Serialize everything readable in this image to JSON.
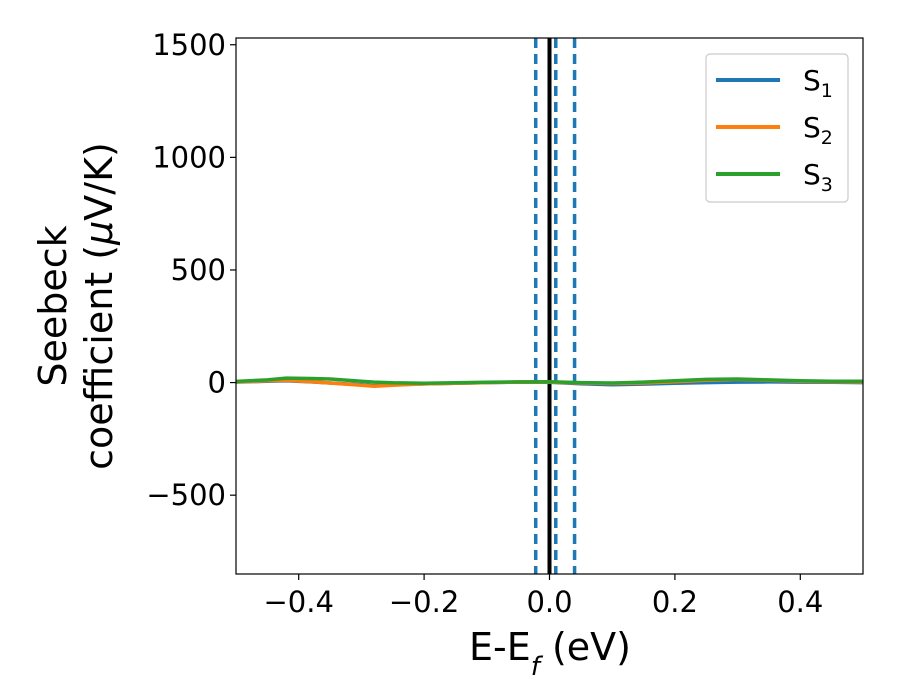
{
  "chart_data": {
    "type": "line",
    "xlabel": {
      "main": "E-E",
      "sub": "f",
      "unit": " (eV)"
    },
    "ylabel": {
      "line1": "Seebeck",
      "line2_prefix": "coefficient  (",
      "mu": "μ",
      "line2_suffix": "V/K)"
    },
    "xlim": [
      -0.5,
      0.5
    ],
    "ylim": [
      -850,
      1530
    ],
    "xticks": [
      {
        "value": -0.4,
        "label": "−0.4"
      },
      {
        "value": -0.2,
        "label": "−0.2"
      },
      {
        "value": 0.0,
        "label": "0.0"
      },
      {
        "value": 0.2,
        "label": "0.2"
      },
      {
        "value": 0.4,
        "label": "0.4"
      }
    ],
    "yticks": [
      {
        "value": -500,
        "label": "−500"
      },
      {
        "value": 0,
        "label": "0"
      },
      {
        "value": 500,
        "label": "500"
      },
      {
        "value": 1000,
        "label": "1000"
      },
      {
        "value": 1500,
        "label": "1500"
      }
    ],
    "series": [
      {
        "name": "S",
        "sub": "1",
        "color": "#1f77b4",
        "x": [
          -0.5,
          -0.45,
          -0.42,
          -0.38,
          -0.35,
          -0.3,
          -0.28,
          -0.25,
          -0.2,
          -0.15,
          -0.1,
          -0.05,
          0.0,
          0.05,
          0.1,
          0.15,
          0.2,
          0.25,
          0.3,
          0.35,
          0.4,
          0.45,
          0.5
        ],
        "y": [
          2,
          6,
          8,
          3,
          -2,
          -10,
          -14,
          -10,
          -6,
          -3,
          0,
          2,
          1,
          -5,
          -10,
          -7,
          -3,
          0,
          2,
          3,
          2,
          1,
          0
        ]
      },
      {
        "name": "S",
        "sub": "2",
        "color": "#ff7f0e",
        "x": [
          -0.5,
          -0.45,
          -0.42,
          -0.38,
          -0.35,
          -0.3,
          -0.28,
          -0.25,
          -0.2,
          -0.15,
          -0.1,
          -0.05,
          0.0,
          0.05,
          0.1,
          0.15,
          0.2,
          0.25,
          0.3,
          0.35,
          0.4,
          0.45,
          0.5
        ],
        "y": [
          3,
          8,
          10,
          4,
          -2,
          -12,
          -16,
          -12,
          -6,
          -3,
          0,
          2,
          2,
          -2,
          -4,
          -2,
          4,
          10,
          14,
          10,
          6,
          4,
          3
        ]
      },
      {
        "name": "S",
        "sub": "3",
        "color": "#2ca02c",
        "x": [
          -0.5,
          -0.45,
          -0.42,
          -0.38,
          -0.35,
          -0.3,
          -0.28,
          -0.25,
          -0.2,
          -0.15,
          -0.1,
          -0.05,
          0.0,
          0.05,
          0.1,
          0.15,
          0.2,
          0.25,
          0.3,
          0.35,
          0.4,
          0.45,
          0.5
        ],
        "y": [
          5,
          12,
          20,
          18,
          16,
          6,
          2,
          -1,
          -3,
          -1,
          1,
          3,
          4,
          0,
          -2,
          2,
          8,
          14,
          16,
          12,
          8,
          6,
          6
        ]
      }
    ],
    "vlines": [
      {
        "x": -0.022,
        "style": "dashed",
        "color": "#1f77b4"
      },
      {
        "x": 0.0,
        "style": "solid",
        "color": "#000000"
      },
      {
        "x": 0.01,
        "style": "dashed",
        "color": "#1f77b4"
      },
      {
        "x": 0.04,
        "style": "dashed",
        "color": "#1f77b4"
      }
    ],
    "legend": {
      "location": "top-right"
    },
    "grid": false
  }
}
